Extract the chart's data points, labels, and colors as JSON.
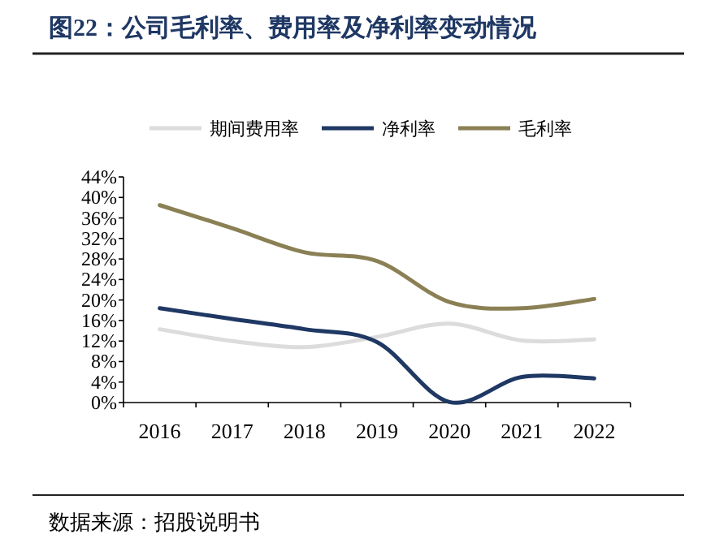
{
  "chart_data": {
    "type": "line",
    "title": "图22：公司毛利率、费用率及净利率变动情况",
    "categories": [
      "2016",
      "2017",
      "2018",
      "2019",
      "2020",
      "2021",
      "2022"
    ],
    "series": [
      {
        "name": "期间费用率",
        "color": "#dcdcdc",
        "values": [
          14.3,
          12.0,
          10.8,
          12.8,
          15.4,
          12.1,
          12.3
        ]
      },
      {
        "name": "净利率",
        "color": "#1f3864",
        "values": [
          18.4,
          16.3,
          14.3,
          11.8,
          0.1,
          5.0,
          4.7
        ]
      },
      {
        "name": "毛利率",
        "color": "#8b8055",
        "values": [
          38.5,
          34.0,
          29.3,
          27.6,
          19.6,
          18.4,
          20.2
        ]
      }
    ],
    "ylim": [
      0,
      44
    ],
    "yticks": [
      {
        "value": 0,
        "label": "0%"
      },
      {
        "value": 4,
        "label": "4%"
      },
      {
        "value": 8,
        "label": "8%"
      },
      {
        "value": 12,
        "label": "12%"
      },
      {
        "value": 16,
        "label": "16%"
      },
      {
        "value": 20,
        "label": "20%"
      },
      {
        "value": 24,
        "label": "24%"
      },
      {
        "value": 28,
        "label": "28%"
      },
      {
        "value": 32,
        "label": "32%"
      },
      {
        "value": 36,
        "label": "36%"
      },
      {
        "value": 40,
        "label": "40%"
      },
      {
        "value": 44,
        "label": "44%"
      }
    ],
    "grid": false,
    "legend": "top",
    "marker": "none",
    "line_style": "solid",
    "annotations": [
      "数据来源：招股说明书"
    ]
  }
}
